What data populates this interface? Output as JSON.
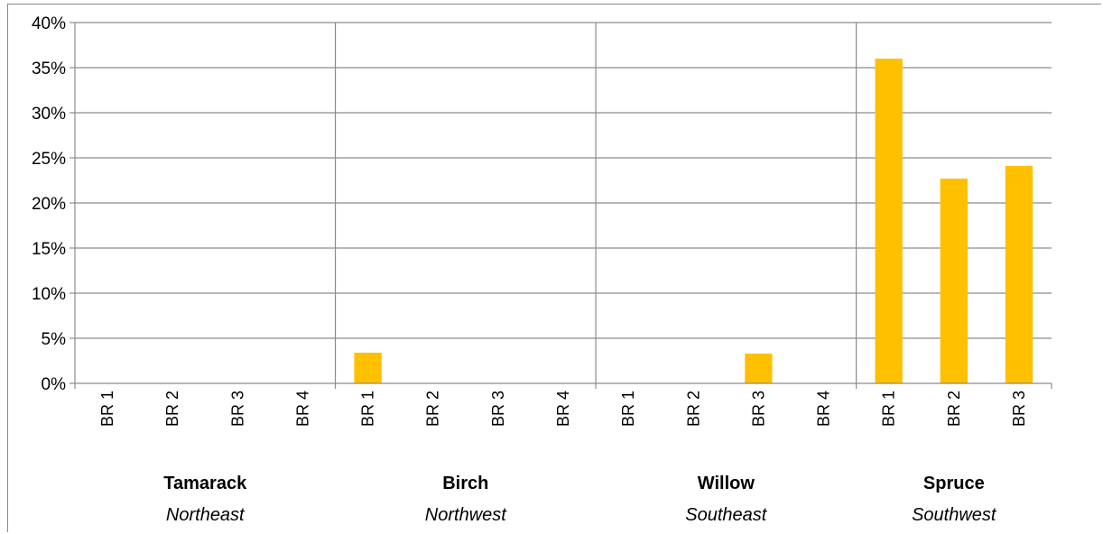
{
  "chart_data": {
    "type": "bar",
    "title": "",
    "xlabel": "",
    "ylabel": "",
    "ylim": [
      0,
      0.4
    ],
    "y_ticks": [
      {
        "value": 0,
        "label": "0%"
      },
      {
        "value": 0.05,
        "label": "5%"
      },
      {
        "value": 0.1,
        "label": "10%"
      },
      {
        "value": 0.15,
        "label": "15%"
      },
      {
        "value": 0.2,
        "label": "20%"
      },
      {
        "value": 0.25,
        "label": "25%"
      },
      {
        "value": 0.3,
        "label": "30%"
      },
      {
        "value": 0.35,
        "label": "35%"
      },
      {
        "value": 0.4,
        "label": "40%"
      }
    ],
    "grid": true,
    "legend": "none",
    "bar_color": "#ffc000",
    "groups": [
      {
        "name": "Tamarack",
        "region": "Northeast",
        "categories": [
          "BR 1",
          "BR 2",
          "BR 3",
          "BR 4"
        ],
        "values": [
          0,
          0,
          0,
          0
        ]
      },
      {
        "name": "Birch",
        "region": "Northwest",
        "categories": [
          "BR 1",
          "BR 2",
          "BR 3",
          "BR 4"
        ],
        "values": [
          0.034,
          0,
          0,
          0
        ]
      },
      {
        "name": "Willow",
        "region": "Southeast",
        "categories": [
          "BR 1",
          "BR 2",
          "BR 3",
          "BR 4"
        ],
        "values": [
          0,
          0,
          0.033,
          0
        ]
      },
      {
        "name": "Spruce",
        "region": "Southwest",
        "categories": [
          "BR 1",
          "BR 2",
          "BR 3"
        ],
        "values": [
          0.36,
          0.227,
          0.241
        ]
      }
    ]
  }
}
